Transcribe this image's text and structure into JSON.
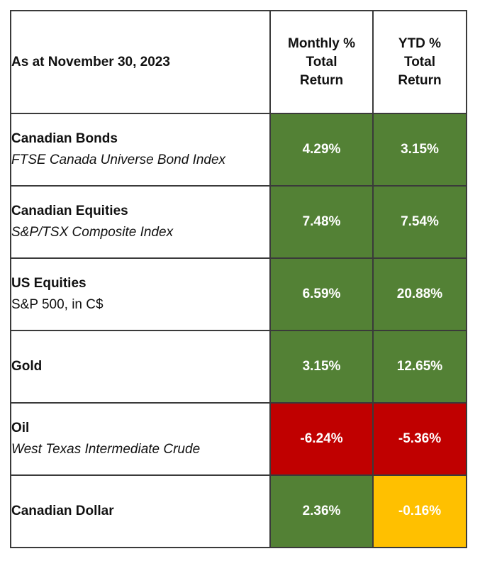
{
  "header": {
    "date_label": "As at November 30, 2023",
    "monthly_lines": [
      "Monthly %",
      "Total",
      "Return"
    ],
    "ytd_lines": [
      "YTD %",
      "Total",
      "Return"
    ]
  },
  "colors": {
    "positive": "#538135",
    "negative": "#c00000",
    "slight_negative": "#ffc000"
  },
  "rows": [
    {
      "name": "Canadian Bonds",
      "sub": "FTSE Canada Universe Bond Index",
      "sub_italic": true,
      "monthly": "4.29%",
      "ytd": "3.15%",
      "monthly_color": "green",
      "ytd_color": "green"
    },
    {
      "name": "Canadian Equities",
      "sub": "S&P/TSX Composite Index",
      "sub_italic": true,
      "monthly": "7.48%",
      "ytd": "7.54%",
      "monthly_color": "green",
      "ytd_color": "green"
    },
    {
      "name": "US Equities",
      "sub": "S&P 500, in C$",
      "sub_italic": false,
      "monthly": "6.59%",
      "ytd": "20.88%",
      "monthly_color": "green",
      "ytd_color": "green"
    },
    {
      "name": "Gold",
      "sub": "",
      "sub_italic": false,
      "monthly": "3.15%",
      "ytd": "12.65%",
      "monthly_color": "green",
      "ytd_color": "green"
    },
    {
      "name": "Oil",
      "sub": "West Texas Intermediate Crude",
      "sub_italic": true,
      "monthly": "-6.24%",
      "ytd": "-5.36%",
      "monthly_color": "red",
      "ytd_color": "red"
    },
    {
      "name": "Canadian Dollar",
      "sub": "",
      "sub_italic": false,
      "monthly": "2.36%",
      "ytd": "-0.16%",
      "monthly_color": "green",
      "ytd_color": "amber"
    }
  ]
}
